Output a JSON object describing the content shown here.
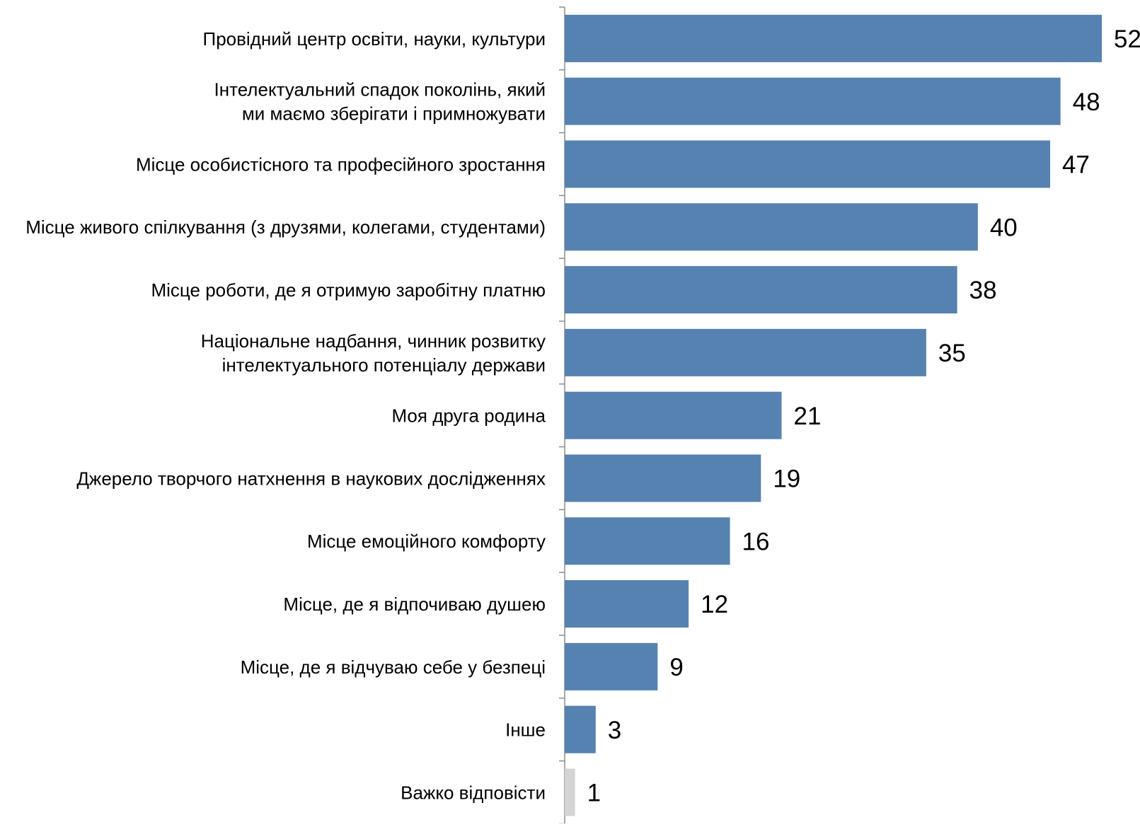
{
  "chart_data": {
    "type": "bar",
    "orientation": "horizontal",
    "title": "",
    "xlabel": "",
    "ylabel": "",
    "xlim": [
      0,
      52
    ],
    "grid": false,
    "legend": "none",
    "categories": [
      [
        "Провідний центр освіти, науки, культури"
      ],
      [
        "Інтелектуальний спадок поколінь, який",
        "ми маємо зберігати і примножувати"
      ],
      [
        "Місце особистісного та професійного зростання"
      ],
      [
        "Місце живого спілкування (з друзями, колегами, студентами)"
      ],
      [
        "Місце роботи, де я отримую заробітну платню"
      ],
      [
        "Національне надбання, чинник розвитку",
        "інтелектуального потенціалу держави"
      ],
      [
        "Моя друга родина"
      ],
      [
        "Джерело творчого натхнення в наукових дослідженнях"
      ],
      [
        "Місце емоційного комфорту"
      ],
      [
        "Місце, де я відпочиваю душею"
      ],
      [
        "Місце, де я відчуваю себе у безпеці"
      ],
      [
        "Інше"
      ],
      [
        "Важко відповісти"
      ]
    ],
    "values": [
      52,
      48,
      47,
      40,
      38,
      35,
      21,
      19,
      16,
      12,
      9,
      3,
      1
    ],
    "data_labels": [
      "52",
      "48",
      "47",
      "40",
      "38",
      "35",
      "21",
      "19",
      "16",
      "12",
      "9",
      "3",
      "1"
    ],
    "colors": {
      "bar": "#5582b1",
      "bar_last": "#d4d4d4",
      "axis": "#8c8c8c",
      "text": "#000000"
    }
  }
}
